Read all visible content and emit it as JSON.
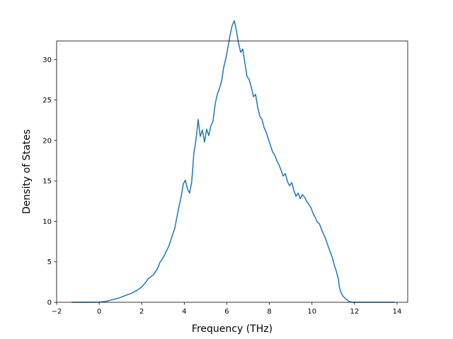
{
  "chart_data": {
    "type": "line",
    "title": "",
    "xlabel": "Frequency (THz)",
    "ylabel": "Density of States",
    "xlim": [
      -2,
      14.5
    ],
    "ylim": [
      0,
      32.3
    ],
    "x_ticks": [
      -2,
      0,
      2,
      4,
      6,
      8,
      10,
      12,
      14
    ],
    "y_ticks": [
      0,
      5,
      10,
      15,
      20,
      25,
      30
    ],
    "x_tick_labels": [
      "−2",
      "0",
      "2",
      "4",
      "6",
      "8",
      "10",
      "12",
      "14"
    ],
    "y_tick_labels": [
      "0",
      "5",
      "10",
      "15",
      "20",
      "25",
      "30"
    ],
    "grid": false,
    "line_color": "#1f77b4",
    "series": [
      {
        "x": [
          -1.3,
          -0.8,
          -0.4,
          0.0,
          0.3,
          0.6,
          0.9,
          1.2,
          1.5,
          1.8,
          2.0,
          2.2,
          2.3,
          2.45,
          2.55,
          2.65,
          2.75,
          2.85,
          2.95,
          3.05,
          3.15,
          3.25,
          3.35,
          3.45,
          3.55,
          3.65,
          3.75,
          3.85,
          3.95,
          4.05,
          4.15,
          4.25,
          4.35,
          4.45,
          4.55,
          4.65,
          4.75,
          4.85,
          4.95,
          5.05,
          5.15,
          5.25,
          5.35,
          5.45,
          5.55,
          5.65,
          5.75,
          5.85,
          5.95,
          6.05,
          6.15,
          6.25,
          6.35,
          6.45,
          6.55,
          6.65,
          6.75,
          6.85,
          6.95,
          7.05,
          7.15,
          7.25,
          7.35,
          7.45,
          7.55,
          7.65,
          7.75,
          7.85,
          7.95,
          8.05,
          8.15,
          8.25,
          8.35,
          8.45,
          8.55,
          8.65,
          8.75,
          8.85,
          8.95,
          9.05,
          9.15,
          9.25,
          9.35,
          9.45,
          9.55,
          9.65,
          9.75,
          9.85,
          9.95,
          10.05,
          10.15,
          10.25,
          10.35,
          10.45,
          10.55,
          10.65,
          10.75,
          10.85,
          10.95,
          11.05,
          11.15,
          11.25,
          11.28,
          11.35,
          11.45,
          11.55,
          11.65,
          11.75,
          11.82,
          11.88,
          11.95,
          12.0,
          12.05,
          12.15,
          12.25,
          12.32,
          12.38,
          12.45,
          12.52,
          12.6,
          12.7,
          12.9,
          13.3,
          13.9
        ],
        "y": [
          0,
          0,
          0,
          0.02,
          0.1,
          0.3,
          0.5,
          0.8,
          1.1,
          1.5,
          1.9,
          2.5,
          2.9,
          3.2,
          3.4,
          3.8,
          4.2,
          4.9,
          5.3,
          5.7,
          6.3,
          6.8,
          7.5,
          8.4,
          9.1,
          10.5,
          11.8,
          13.0,
          14.6,
          15.1,
          14.0,
          13.5,
          14.9,
          18.4,
          20.1,
          22.6,
          20.5,
          21.3,
          19.8,
          21.4,
          20.6,
          21.8,
          22.4,
          24.5,
          25.7,
          26.4,
          27.3,
          29.0,
          30.1,
          31.5,
          33.0,
          34.2,
          34.8,
          33.6,
          32.0,
          30.9,
          31.3,
          29.5,
          27.9,
          27.5,
          26.6,
          25.4,
          25.7,
          24.1,
          23.0,
          22.6,
          21.6,
          21.0,
          20.2,
          19.4,
          18.6,
          18.2,
          17.5,
          17.0,
          16.3,
          15.6,
          15.9,
          14.9,
          14.4,
          14.8,
          13.8,
          13.1,
          13.5,
          12.8,
          13.3,
          13.0,
          12.5,
          12.1,
          11.7,
          11.0,
          10.5,
          9.9,
          9.7,
          9.0,
          8.4,
          7.8,
          7.0,
          6.3,
          5.6,
          4.6,
          3.8,
          2.8,
          2.0,
          1.3,
          0.8,
          0.5,
          0.3,
          0.1,
          0.05,
          0,
          0,
          0,
          0,
          0,
          0,
          0,
          0,
          0,
          0,
          0,
          0,
          0,
          0,
          0
        ]
      }
    ]
  }
}
